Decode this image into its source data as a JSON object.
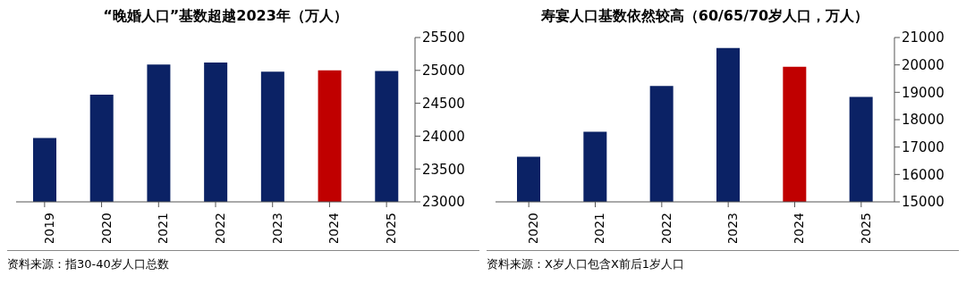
{
  "chart_data": [
    {
      "type": "bar",
      "title": "“晚婚人口”基数超越2023年（万人）",
      "categories": [
        "2019",
        "2020",
        "2021",
        "2022",
        "2023",
        "2024",
        "2025"
      ],
      "values": [
        23970,
        24630,
        25090,
        25120,
        24980,
        25000,
        24990
      ],
      "colors": [
        "#0b2265",
        "#0b2265",
        "#0b2265",
        "#0b2265",
        "#0b2265",
        "#c00000",
        "#0b2265"
      ],
      "ylim": [
        23000,
        25500
      ],
      "yticks": [
        23000,
        23500,
        24000,
        24500,
        25000,
        25500
      ],
      "grid": false,
      "legend": false,
      "annotations": [
        "资料来源：指30-40岁人口总数"
      ]
    },
    {
      "type": "bar",
      "title": "寿宴人口基数依然较高（60/65/70岁人口，万人）",
      "categories": [
        "2020",
        "2021",
        "2022",
        "2023",
        "2024",
        "2025"
      ],
      "values": [
        16650,
        17560,
        19230,
        20620,
        19930,
        18830
      ],
      "colors": [
        "#0b2265",
        "#0b2265",
        "#0b2265",
        "#0b2265",
        "#c00000",
        "#0b2265"
      ],
      "ylim": [
        15000,
        21000
      ],
      "yticks": [
        15000,
        16000,
        17000,
        18000,
        19000,
        20000,
        21000
      ],
      "grid": false,
      "legend": false,
      "annotations": [
        "资料来源：X岁人口包含X前后1岁人口"
      ]
    }
  ]
}
